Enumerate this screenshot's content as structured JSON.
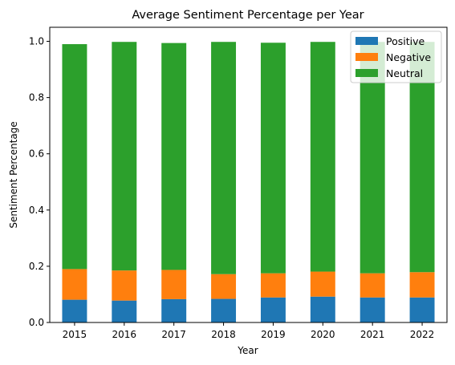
{
  "chart_data": {
    "type": "bar",
    "stacked": true,
    "title": "Average Sentiment Percentage per Year",
    "xlabel": "Year",
    "ylabel": "Sentiment Percentage",
    "categories": [
      "2015",
      "2016",
      "2017",
      "2018",
      "2019",
      "2020",
      "2021",
      "2022"
    ],
    "series": [
      {
        "name": "Positive",
        "color": "#1f77b4",
        "values": [
          0.081,
          0.078,
          0.083,
          0.084,
          0.089,
          0.092,
          0.089,
          0.089
        ]
      },
      {
        "name": "Negative",
        "color": "#ff7f0e",
        "values": [
          0.109,
          0.107,
          0.104,
          0.088,
          0.086,
          0.089,
          0.086,
          0.09
        ]
      },
      {
        "name": "Neutral",
        "color": "#2ca02c",
        "values": [
          0.8,
          0.813,
          0.807,
          0.826,
          0.82,
          0.817,
          0.823,
          0.819
        ]
      }
    ],
    "ylim": [
      0,
      1.05
    ],
    "yticks": [
      "0.0",
      "0.2",
      "0.4",
      "0.6",
      "0.8",
      "1.0"
    ],
    "grid": false,
    "legend_position": "top-right"
  }
}
